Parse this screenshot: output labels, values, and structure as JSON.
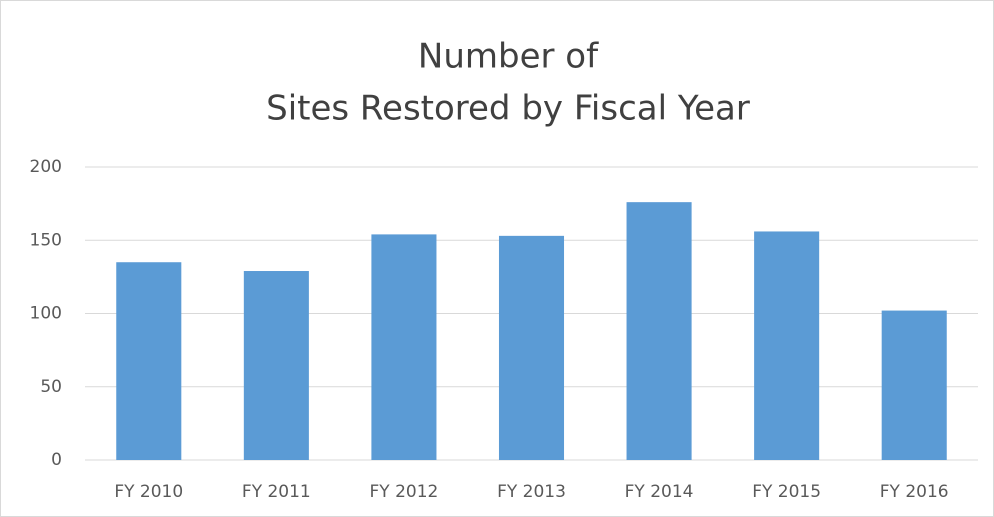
{
  "chart_data": {
    "type": "bar",
    "title": [
      "Number of",
      "Sites Restored by Fiscal Year"
    ],
    "categories": [
      "FY 2010",
      "FY 2011",
      "FY 2012",
      "FY 2013",
      "FY 2014",
      "FY 2015",
      "FY 2016"
    ],
    "values": [
      135,
      129,
      154,
      153,
      176,
      156,
      102
    ],
    "color": "#5b9bd5",
    "ylim": [
      0,
      200
    ],
    "yticks": [
      0,
      50,
      100,
      150,
      200
    ],
    "grid": true
  }
}
